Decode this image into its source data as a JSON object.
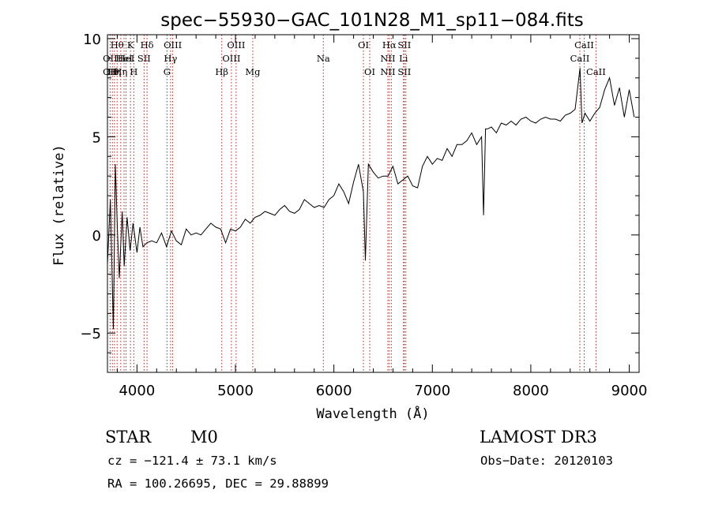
{
  "chart_data": {
    "type": "line",
    "title": "spec−55930−GAC_101N28_M1_sp11−084.fits",
    "xlabel": "Wavelength (Å)",
    "ylabel": "Flux (relative)",
    "xlim": [
      3700,
      9100
    ],
    "ylim": [
      -7,
      10.2
    ],
    "xticks": [
      4000,
      5000,
      6000,
      7000,
      8000,
      9000
    ],
    "yticks": [
      -5,
      0,
      5,
      10
    ],
    "xtick_labels": [
      "4000",
      "5000",
      "6000",
      "7000",
      "8000",
      "9000"
    ],
    "ytick_labels": [
      "−5",
      "0",
      "5",
      "10"
    ],
    "series": [
      {
        "name": "spectrum",
        "x": [
          3700,
          3730,
          3760,
          3780,
          3800,
          3820,
          3850,
          3870,
          3900,
          3930,
          3960,
          4000,
          4030,
          4060,
          4100,
          4150,
          4200,
          4250,
          4300,
          4350,
          4400,
          4450,
          4500,
          4550,
          4600,
          4650,
          4700,
          4750,
          4800,
          4850,
          4900,
          4950,
          5000,
          5050,
          5100,
          5150,
          5200,
          5250,
          5300,
          5350,
          5400,
          5450,
          5500,
          5550,
          5600,
          5650,
          5700,
          5750,
          5800,
          5850,
          5900,
          5950,
          6000,
          6050,
          6100,
          6150,
          6200,
          6250,
          6300,
          6320,
          6350,
          6400,
          6450,
          6500,
          6550,
          6600,
          6650,
          6700,
          6750,
          6800,
          6850,
          6900,
          6950,
          7000,
          7050,
          7100,
          7150,
          7200,
          7250,
          7300,
          7350,
          7400,
          7450,
          7500,
          7520,
          7540,
          7560,
          7600,
          7650,
          7700,
          7750,
          7800,
          7850,
          7900,
          7950,
          8000,
          8050,
          8100,
          8150,
          8200,
          8250,
          8300,
          8350,
          8400,
          8450,
          8500,
          8520,
          8550,
          8600,
          8650,
          8700,
          8750,
          8800,
          8850,
          8900,
          8950,
          9000,
          9050
        ],
        "y": [
          -1.5,
          1.8,
          -4.8,
          3.6,
          0.4,
          -2.2,
          1.2,
          -1.6,
          0.9,
          -0.8,
          0.6,
          -0.9,
          0.4,
          -0.6,
          -0.4,
          -0.3,
          -0.4,
          0.1,
          -0.6,
          0.2,
          -0.3,
          -0.5,
          0.3,
          0.0,
          0.1,
          0.0,
          0.3,
          0.6,
          0.4,
          0.3,
          -0.4,
          0.3,
          0.2,
          0.4,
          0.8,
          0.6,
          0.9,
          1.0,
          1.2,
          1.1,
          1.0,
          1.3,
          1.5,
          1.2,
          1.1,
          1.3,
          1.8,
          1.6,
          1.4,
          1.5,
          1.4,
          1.8,
          2.0,
          2.6,
          2.2,
          1.6,
          2.7,
          3.6,
          2.2,
          -1.3,
          3.6,
          3.2,
          2.9,
          3.0,
          3.0,
          3.5,
          2.6,
          2.8,
          3.0,
          2.5,
          2.4,
          3.5,
          4.0,
          3.6,
          3.9,
          3.8,
          4.4,
          4.0,
          4.6,
          4.6,
          4.8,
          5.2,
          4.6,
          5.0,
          1.0,
          5.4,
          5.4,
          5.5,
          5.2,
          5.7,
          5.6,
          5.8,
          5.6,
          5.9,
          6.0,
          5.8,
          5.7,
          5.9,
          6.0,
          5.9,
          5.9,
          5.8,
          6.1,
          6.2,
          6.4,
          8.5,
          5.7,
          6.2,
          5.8,
          6.2,
          6.5,
          7.4,
          8.0,
          6.6,
          7.5,
          6.0,
          7.4,
          6.0
        ]
      }
    ],
    "lines": [
      {
        "wave": 3727,
        "labels": [
          "",
          "OII",
          "OII"
        ]
      },
      {
        "wave": 3750,
        "labels": [
          "",
          "",
          "Hθ"
        ]
      },
      {
        "wave": 3771,
        "labels": [
          "",
          "",
          "Hη"
        ]
      },
      {
        "wave": 3798,
        "labels": [
          "Hθ",
          "",
          ""
        ]
      },
      {
        "wave": 3835,
        "labels": [
          "",
          "",
          "Hη"
        ]
      },
      {
        "wave": 3869,
        "labels": [
          "",
          "HeI",
          ""
        ]
      },
      {
        "wave": 3889,
        "labels": [
          "",
          "HeI",
          ""
        ]
      },
      {
        "wave": 3934,
        "labels": [
          "K",
          "",
          ""
        ]
      },
      {
        "wave": 3968,
        "labels": [
          "",
          "",
          "H"
        ]
      },
      {
        "wave": 4072,
        "labels": [
          "",
          "SII",
          ""
        ]
      },
      {
        "wave": 4102,
        "labels": [
          "Hδ",
          "",
          ""
        ]
      },
      {
        "wave": 4305,
        "labels": [
          "",
          "",
          "G"
        ]
      },
      {
        "wave": 4341,
        "labels": [
          "",
          "Hγ",
          ""
        ]
      },
      {
        "wave": 4363,
        "labels": [
          "OIII",
          "",
          ""
        ]
      },
      {
        "wave": 4861,
        "labels": [
          "",
          "",
          "Hβ"
        ]
      },
      {
        "wave": 4959,
        "labels": [
          "",
          "OIII",
          ""
        ]
      },
      {
        "wave": 5007,
        "labels": [
          "OIII",
          "",
          ""
        ]
      },
      {
        "wave": 5176,
        "labels": [
          "",
          "",
          "Mg"
        ]
      },
      {
        "wave": 5893,
        "labels": [
          "",
          "Na",
          ""
        ]
      },
      {
        "wave": 6300,
        "labels": [
          "OI",
          "",
          ""
        ]
      },
      {
        "wave": 6364,
        "labels": [
          "",
          "",
          "OI"
        ]
      },
      {
        "wave": 6548,
        "labels": [
          "",
          "NII",
          "NII"
        ]
      },
      {
        "wave": 6563,
        "labels": [
          "Hα",
          "",
          ""
        ]
      },
      {
        "wave": 6583,
        "labels": [
          "",
          "",
          ""
        ]
      },
      {
        "wave": 6707,
        "labels": [
          "",
          "Li",
          ""
        ]
      },
      {
        "wave": 6716,
        "labels": [
          "SII",
          "",
          "SII"
        ]
      },
      {
        "wave": 6731,
        "labels": [
          "",
          "",
          ""
        ]
      },
      {
        "wave": 8498,
        "labels": [
          "",
          "CaII",
          ""
        ]
      },
      {
        "wave": 8542,
        "labels": [
          "CaII",
          "",
          ""
        ]
      },
      {
        "wave": 8662,
        "labels": [
          "",
          "",
          "CaII"
        ]
      }
    ]
  },
  "info": {
    "class": "STAR",
    "subclass": "M0",
    "survey": "LAMOST DR3",
    "cz": "cz = −121.4 ± 73.1 km/s",
    "obs_date": "Obs−Date: 20120103",
    "radec": "RA = 100.26695, DEC =  29.88899"
  }
}
